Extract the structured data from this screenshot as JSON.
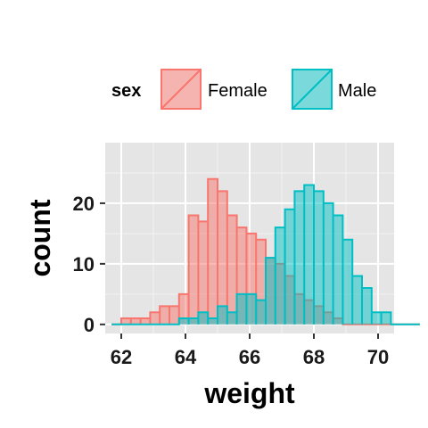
{
  "chart_data": {
    "type": "histogram",
    "xlabel": "weight",
    "ylabel": "count",
    "xlim": [
      61.5,
      70.5
    ],
    "ylim": [
      -1.5,
      30
    ],
    "xticks": [
      62,
      64,
      66,
      68,
      70
    ],
    "yticks": [
      0,
      10,
      20
    ],
    "bin_width": 0.3,
    "bins_start": 61.7,
    "grid": true,
    "legend": {
      "title": "sex",
      "position": "top"
    },
    "series": [
      {
        "name": "Female",
        "fill": "#F8766D",
        "values": [
          0,
          1,
          1,
          1,
          2,
          3,
          3,
          5,
          18,
          17,
          24,
          22,
          18,
          16,
          15,
          14,
          11,
          10,
          8,
          5,
          4,
          3,
          2,
          1,
          0,
          0,
          0,
          0,
          0,
          0,
          0,
          0
        ]
      },
      {
        "name": "Male",
        "fill": "#00BFC4",
        "values": [
          0,
          0,
          0,
          0,
          0,
          0,
          0,
          1,
          1,
          2,
          1,
          3,
          2,
          5,
          5,
          4,
          11,
          16,
          19,
          22,
          23,
          22,
          20,
          18,
          14,
          8,
          6,
          2,
          2,
          0,
          0,
          0
        ]
      }
    ]
  }
}
